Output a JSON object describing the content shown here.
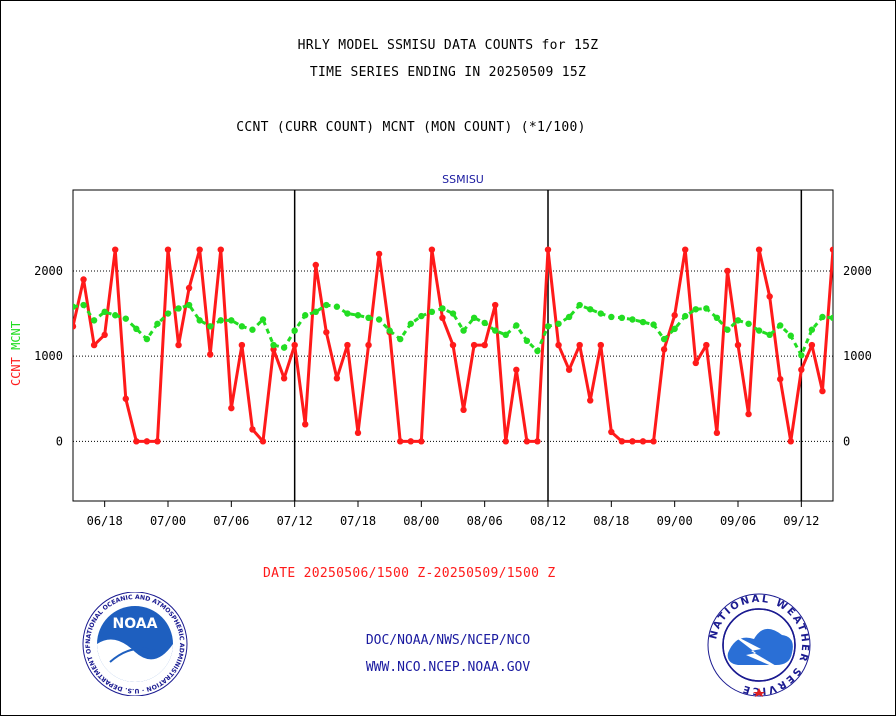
{
  "title": {
    "line1": "HRLY MODEL SSMISU DATA COUNTS for 15Z",
    "line2": "TIME SERIES ENDING IN 20250509 15Z",
    "line3": "CCNT (CURR COUNT) MCNT (MON COUNT) (*1/100)"
  },
  "date_range": "DATE 20250506/1500 Z-20250509/1500 Z",
  "footer": {
    "org": "DOC/NOAA/NWS/NCEP/NCO",
    "url": "WWW.NCO.NCEP.NOAA.GOV"
  },
  "logos": {
    "left": {
      "name": "NOAA",
      "ring_text": "NATIONAL OCEANIC AND ATMOSPHERIC ADMINISTRATION · U.S. DEPARTMENT OF COMMERCE ·"
    },
    "right": {
      "ring_text": "NATIONAL WEATHER SERVICE"
    }
  },
  "colors": {
    "ccnt": "#ff1a1a",
    "mcnt": "#22dd22",
    "subtitle": "#1a1aa0",
    "grid": "#000000"
  },
  "chart_data": {
    "type": "line",
    "subtitle": "SSMISU",
    "ylabel_left": [
      "CCNT",
      "MCNT"
    ],
    "ylim": [
      -700,
      2950
    ],
    "yticks": [
      0,
      1000,
      2000
    ],
    "grid": "horizontal dotted at y ticks",
    "x_range": [
      0,
      72
    ],
    "xtick_positions": [
      3,
      9,
      15,
      21,
      27,
      33,
      39,
      45,
      51,
      57,
      63,
      69
    ],
    "xtick_labels": [
      "06/18",
      "07/00",
      "07/06",
      "07/12",
      "07/18",
      "08/00",
      "08/06",
      "08/12",
      "08/18",
      "09/00",
      "09/06",
      "09/12"
    ],
    "day_boundaries": [
      21,
      45,
      69
    ],
    "x": [
      0,
      1,
      2,
      3,
      4,
      5,
      6,
      7,
      8,
      9,
      10,
      11,
      12,
      13,
      14,
      15,
      16,
      17,
      18,
      19,
      20,
      21,
      22,
      23,
      24,
      25,
      26,
      27,
      28,
      29,
      30,
      31,
      32,
      33,
      34,
      35,
      36,
      37,
      38,
      39,
      40,
      41,
      42,
      43,
      44,
      45,
      46,
      47,
      48,
      49,
      50,
      51,
      52,
      53,
      54,
      55,
      56,
      57,
      58,
      59,
      60,
      61,
      62,
      63,
      64,
      65,
      66,
      67,
      68,
      69,
      70,
      71,
      72
    ],
    "series": [
      {
        "name": "CCNT",
        "values": [
          1350,
          1900,
          1130,
          1250,
          2250,
          500,
          0,
          0,
          0,
          2250,
          1130,
          1800,
          2250,
          1020,
          2250,
          390,
          1130,
          140,
          0,
          1080,
          740,
          1130,
          200,
          2070,
          1280,
          740,
          1130,
          100,
          1130,
          2200,
          1280,
          0,
          0,
          0,
          2250,
          1450,
          1130,
          370,
          1130,
          1130,
          1600,
          0,
          840,
          0,
          0,
          2250,
          1130,
          840,
          1130,
          480,
          1130,
          110,
          0,
          0,
          0,
          0,
          1080,
          1480,
          2250,
          920,
          1130,
          100,
          2000,
          1130,
          320,
          2250,
          1700,
          730,
          0,
          840,
          1130,
          590,
          2250
        ]
      },
      {
        "name": "MCNT",
        "values": [
          1580,
          1600,
          1420,
          1520,
          1480,
          1440,
          1320,
          1200,
          1380,
          1500,
          1560,
          1600,
          1420,
          1350,
          1420,
          1420,
          1350,
          1310,
          1430,
          1130,
          1100,
          1300,
          1480,
          1520,
          1600,
          1580,
          1500,
          1480,
          1450,
          1430,
          1300,
          1200,
          1380,
          1470,
          1520,
          1560,
          1500,
          1300,
          1450,
          1390,
          1300,
          1250,
          1360,
          1180,
          1060,
          1350,
          1380,
          1460,
          1600,
          1550,
          1500,
          1460,
          1450,
          1430,
          1400,
          1370,
          1200,
          1320,
          1470,
          1550,
          1560,
          1450,
          1310,
          1420,
          1380,
          1300,
          1250,
          1360,
          1240,
          1010,
          1310,
          1460,
          1450
        ]
      }
    ]
  }
}
